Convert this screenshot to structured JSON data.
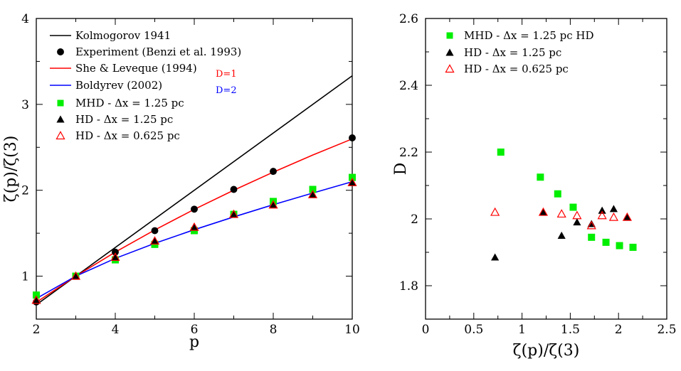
{
  "chart_data": [
    {
      "type": "line",
      "xlabel": "p",
      "ylabel": "ζ(p)/ζ(3)",
      "xlim": [
        2,
        10
      ],
      "ylim": [
        0.5,
        4
      ],
      "xticks": [
        2,
        4,
        6,
        8,
        10
      ],
      "yticks": [
        1,
        2,
        3,
        4
      ],
      "grid": false,
      "legend_position": "top-left",
      "lines": [
        {
          "name": "Kolmogorov 1941",
          "color": "#000000",
          "x": [
            2,
            10
          ],
          "y": [
            0.667,
            3.333
          ]
        },
        {
          "name": "She & Leveque (1994)",
          "color": "#ff0000",
          "x": [
            2,
            3,
            4,
            5,
            6,
            7,
            8,
            9,
            10
          ],
          "y": [
            0.696,
            1.0,
            1.28,
            1.538,
            1.778,
            2.001,
            2.211,
            2.41,
            2.598
          ],
          "annotation": "D=1"
        },
        {
          "name": "Boldyrev (2002)",
          "color": "#0000ff",
          "x": [
            2,
            3,
            4,
            5,
            6,
            7,
            8,
            9,
            10
          ],
          "y": [
            0.739,
            1.0,
            1.207,
            1.382,
            1.541,
            1.69,
            1.832,
            1.968,
            2.1
          ],
          "annotation": "D=2"
        }
      ],
      "series": [
        {
          "name": "Experiment (Benzi et al. 1993)",
          "marker": "circle",
          "color": "#000000",
          "x": [
            2,
            3,
            4,
            5,
            6,
            7,
            8,
            10
          ],
          "y": [
            0.7,
            1.0,
            1.28,
            1.53,
            1.78,
            2.01,
            2.22,
            2.61
          ]
        },
        {
          "name": "MHD - Δx = 1.25 pc",
          "marker": "square",
          "color": "#00ee00",
          "x": [
            2,
            3,
            4,
            5,
            6,
            7,
            8,
            9,
            10
          ],
          "y": [
            0.78,
            1.0,
            1.19,
            1.37,
            1.53,
            1.72,
            1.87,
            2.01,
            2.15
          ]
        },
        {
          "name": "HD - Δx = 1.25 pc",
          "marker": "triangle-filled",
          "color": "#000000",
          "x": [
            2,
            3,
            4,
            5,
            6,
            7,
            8,
            9,
            10
          ],
          "y": [
            0.72,
            1.0,
            1.22,
            1.41,
            1.57,
            1.72,
            1.83,
            1.95,
            2.09
          ]
        },
        {
          "name": "HD - Δx = 0.625 pc",
          "marker": "triangle-open",
          "color": "#ff0000",
          "x": [
            2,
            3,
            4,
            5,
            6,
            7,
            8,
            9,
            10
          ],
          "y": [
            0.72,
            1.0,
            1.22,
            1.41,
            1.57,
            1.72,
            1.83,
            1.95,
            2.09
          ]
        }
      ],
      "annotations": [
        "D=1",
        "D=2"
      ]
    },
    {
      "type": "scatter",
      "xlabel": "ζ(p)/ζ(3)",
      "ylabel": "D",
      "xlim": [
        0,
        2.5
      ],
      "ylim": [
        1.7,
        2.6
      ],
      "xticks": [
        "0",
        "0.5",
        "1",
        "1.5",
        "2",
        "2.5"
      ],
      "yticks": [
        "1.8",
        "2",
        "2.2",
        "2.4",
        "2.6"
      ],
      "grid": false,
      "legend_position": "top-left",
      "series": [
        {
          "name": "MHD - Δx = 1.25 pc HD",
          "marker": "square",
          "color": "#00ee00",
          "x": [
            0.78,
            1.19,
            1.37,
            1.53,
            1.72,
            1.87,
            2.01,
            2.15
          ],
          "y": [
            2.2,
            2.125,
            2.075,
            2.035,
            1.945,
            1.93,
            1.92,
            1.915
          ]
        },
        {
          "name": "HD - Δx = 1.25 pc",
          "marker": "triangle-filled",
          "color": "#000000",
          "x": [
            0.72,
            1.22,
            1.41,
            1.57,
            1.72,
            1.83,
            1.95,
            2.09
          ],
          "y": [
            1.885,
            2.02,
            1.95,
            1.99,
            1.985,
            2.025,
            2.03,
            2.005
          ]
        },
        {
          "name": "HD - Δx = 0.625 pc",
          "marker": "triangle-open",
          "color": "#ff0000",
          "x": [
            0.72,
            1.22,
            1.41,
            1.57,
            1.72,
            1.83,
            1.95,
            2.09
          ],
          "y": [
            2.02,
            2.02,
            2.015,
            2.01,
            1.98,
            2.01,
            2.005,
            2.005
          ]
        }
      ]
    }
  ]
}
